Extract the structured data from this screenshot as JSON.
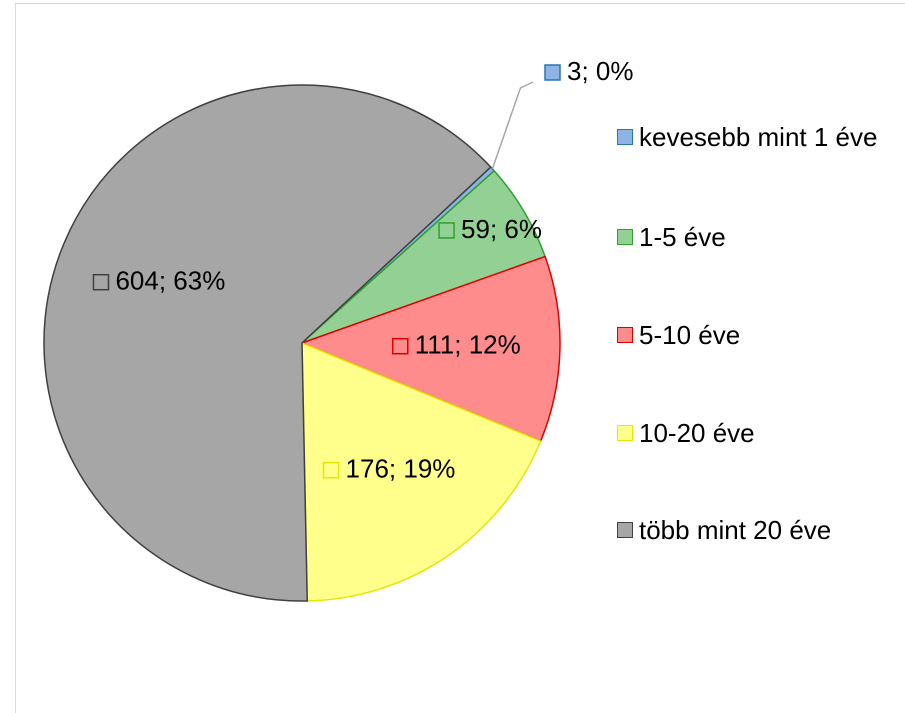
{
  "chart_data": {
    "type": "pie",
    "categories": [
      "kevesebb mint 1 éve",
      "1-5 éve",
      "5-10 éve",
      "10-20 éve",
      "több mint 20 éve"
    ],
    "values": [
      3,
      59,
      111,
      176,
      604
    ],
    "value_labels": [
      "3; 0%",
      "59; 6%",
      "111; 12%",
      "176; 19%",
      "604; 63%"
    ],
    "colors": [
      "#8db4e2",
      "#93d093",
      "#ff8c8c",
      "#ffff8c",
      "#a6a6a6"
    ],
    "edge_colors": [
      "#2e75b6",
      "#2ea02e",
      "#e00000",
      "#e6e600",
      "#404040"
    ],
    "legend": "right"
  }
}
